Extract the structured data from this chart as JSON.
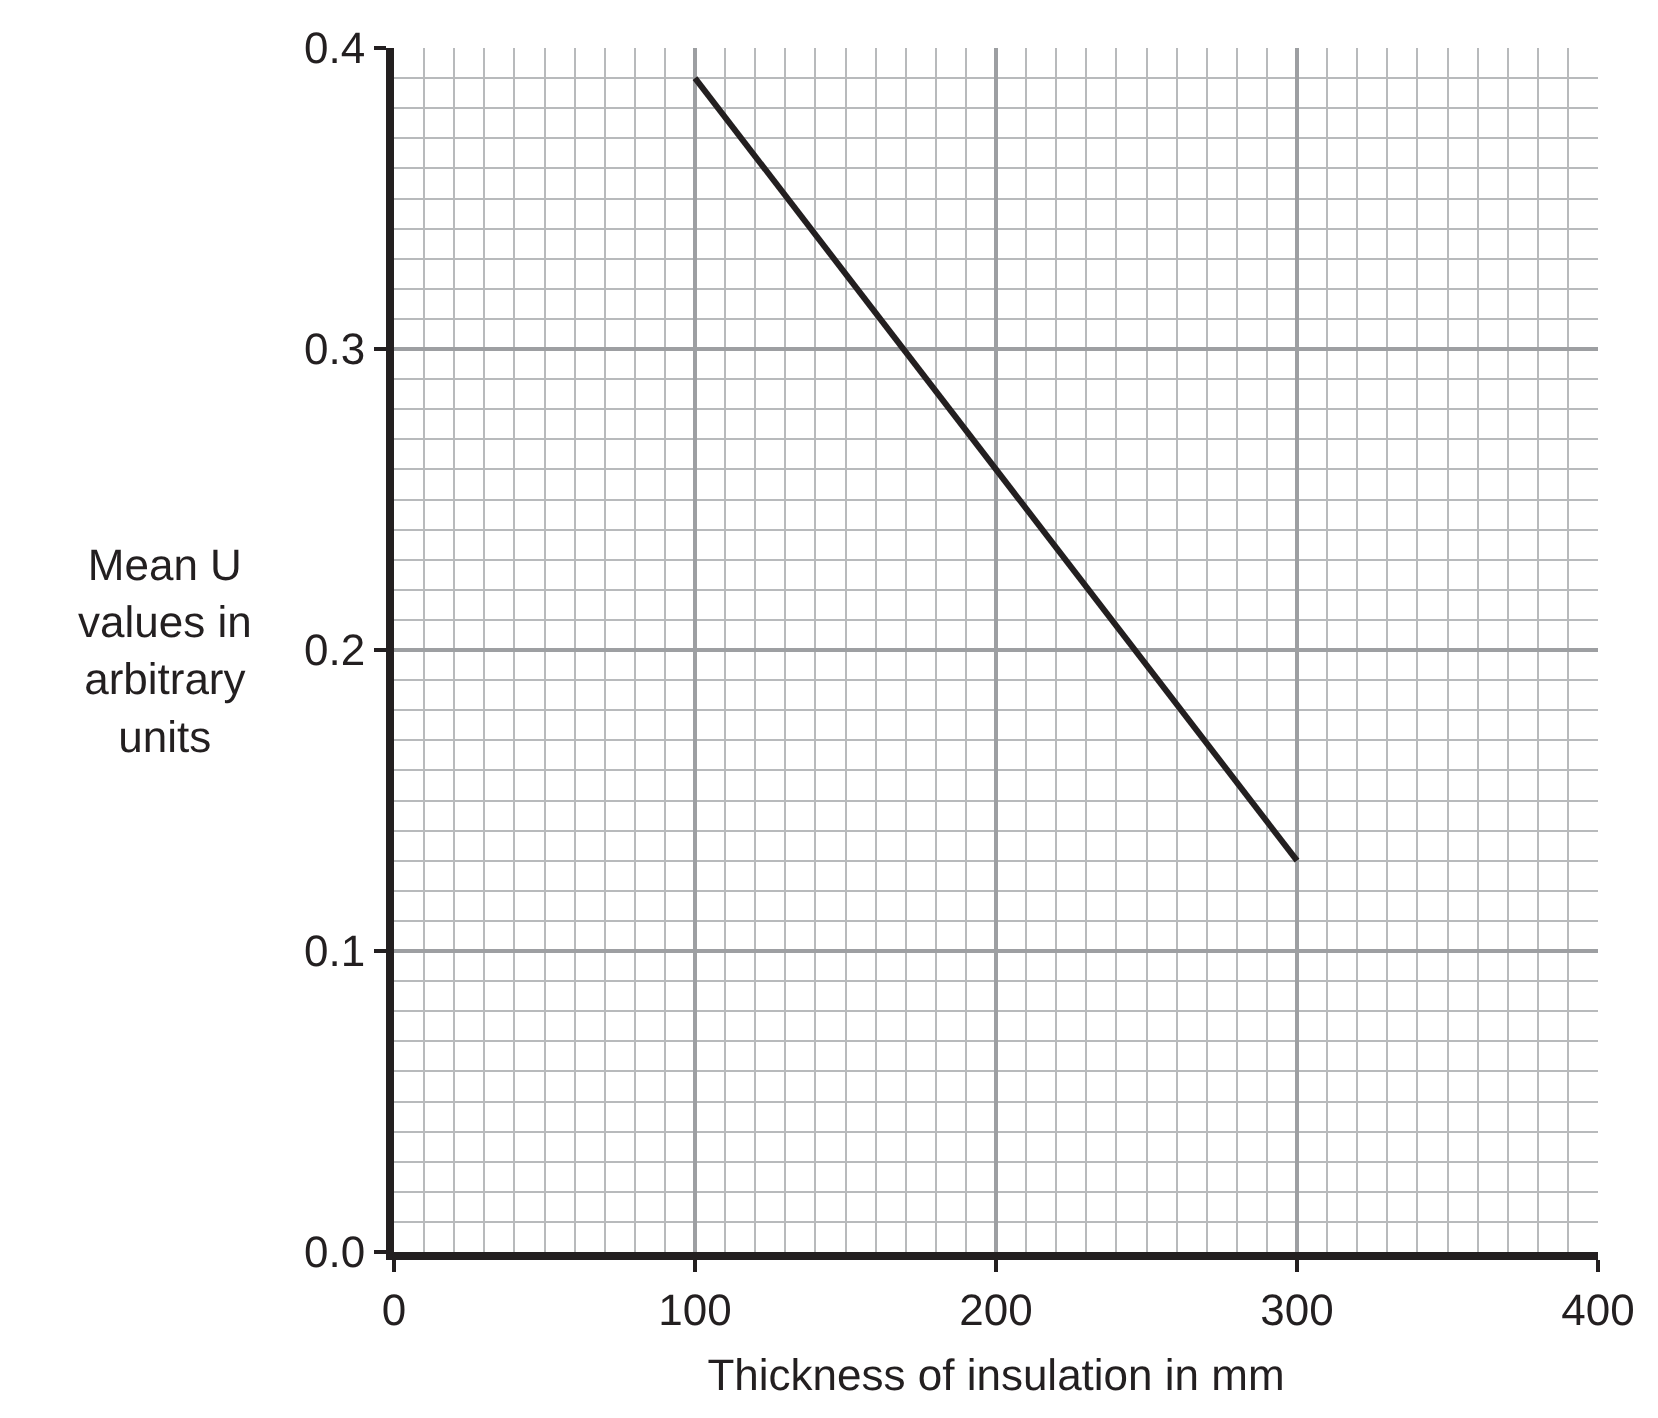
{
  "chart_data": {
    "type": "line",
    "xlabel": "Thickness of insulation in mm",
    "ylabel": "Mean U\nvalues in\narbitrary\nunits",
    "x": [
      100,
      300
    ],
    "series": [
      {
        "color": "#231f20",
        "values": [
          0.39,
          0.13
        ]
      }
    ],
    "xlim": [
      0,
      400
    ],
    "xticks": [
      0,
      100,
      200,
      300,
      400
    ],
    "ylim": [
      0,
      0.4
    ],
    "yticks": [
      {
        "value": 0,
        "label": "0.0"
      },
      0.1,
      0.2,
      0.3,
      0.4
    ],
    "grid": true,
    "marker": "none",
    "line_style": "solid"
  }
}
